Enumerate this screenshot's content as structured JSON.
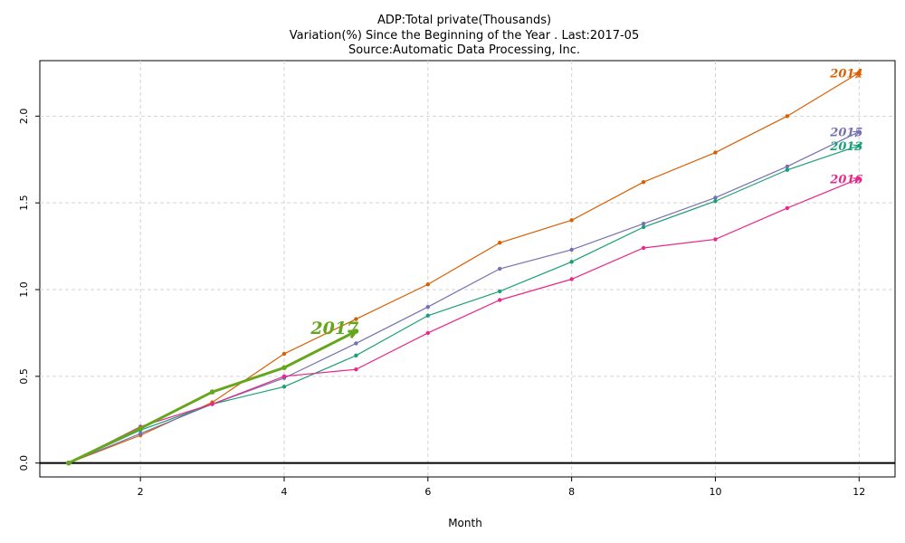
{
  "chart_data": {
    "type": "line",
    "title": "ADP:Total private(Thousands)",
    "subtitle": "Variation(%) Since the Beginning of the Year . Last:2017-05",
    "source": "Source:Automatic Data Processing, Inc.",
    "xlabel": "Month",
    "ylabel": "",
    "xlim": [
      0.6,
      12.5
    ],
    "ylim": [
      -0.08,
      2.32
    ],
    "xticks": [
      2,
      4,
      6,
      8,
      10,
      12
    ],
    "yticks": [
      0.0,
      0.5,
      1.0,
      1.5,
      2.0
    ],
    "ytick_labels": [
      "0.0",
      "0.5",
      "1.0",
      "1.5",
      "2.0"
    ],
    "grid": true,
    "series": [
      {
        "name": "2014",
        "color": "#d95f02",
        "x": [
          1,
          2,
          3,
          4,
          5,
          6,
          7,
          8,
          9,
          10,
          11,
          12
        ],
        "values": [
          0.0,
          0.16,
          0.35,
          0.63,
          0.83,
          1.03,
          1.27,
          1.4,
          1.62,
          1.79,
          2.0,
          2.25
        ]
      },
      {
        "name": "2015",
        "color": "#7570b3",
        "x": [
          1,
          2,
          3,
          4,
          5,
          6,
          7,
          8,
          9,
          10,
          11,
          12
        ],
        "values": [
          0.0,
          0.17,
          0.34,
          0.49,
          0.69,
          0.9,
          1.12,
          1.23,
          1.38,
          1.53,
          1.71,
          1.91
        ]
      },
      {
        "name": "2013",
        "color": "#1b9e77",
        "x": [
          1,
          2,
          3,
          4,
          5,
          6,
          7,
          8,
          9,
          10,
          11,
          12
        ],
        "values": [
          0.0,
          0.19,
          0.34,
          0.44,
          0.62,
          0.85,
          0.99,
          1.16,
          1.36,
          1.51,
          1.69,
          1.83
        ]
      },
      {
        "name": "2016",
        "color": "#e7298a",
        "x": [
          1,
          2,
          3,
          4,
          5,
          6,
          7,
          8,
          9,
          10,
          11,
          12
        ],
        "values": [
          0.0,
          0.21,
          0.34,
          0.5,
          0.54,
          0.75,
          0.94,
          1.06,
          1.24,
          1.29,
          1.47,
          1.64
        ]
      },
      {
        "name": "2017",
        "color": "#66a61e",
        "x": [
          1,
          2,
          3,
          4,
          5
        ],
        "values": [
          0.0,
          0.2,
          0.41,
          0.55,
          0.76
        ],
        "highlight": true
      }
    ]
  }
}
